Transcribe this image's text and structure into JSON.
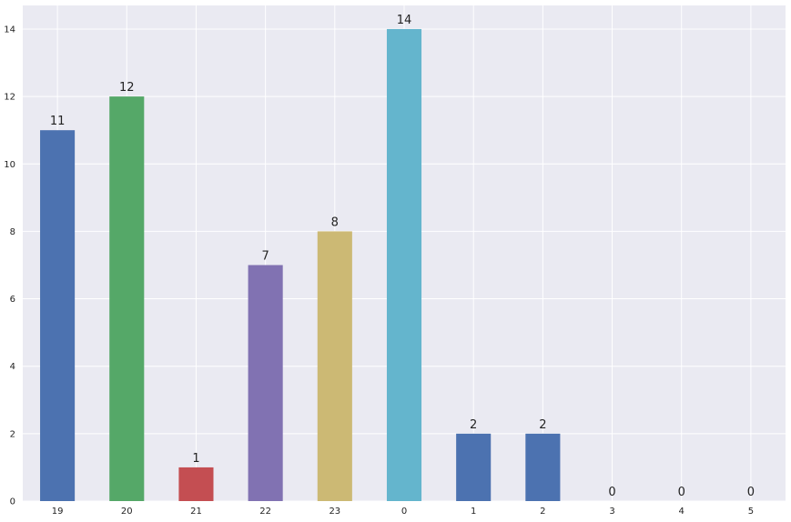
{
  "chart_data": {
    "type": "bar",
    "categories": [
      "19",
      "20",
      "21",
      "22",
      "23",
      "0",
      "1",
      "2",
      "3",
      "4",
      "5"
    ],
    "values": [
      11,
      12,
      1,
      7,
      8,
      14,
      2,
      2,
      0,
      0,
      0
    ],
    "data_labels": [
      "11",
      "12",
      "1",
      "7",
      "8",
      "14",
      "2",
      "2",
      "0",
      "0",
      "0"
    ],
    "colors": [
      "#4c72b0",
      "#55a868",
      "#c44e52",
      "#8172b2",
      "#ccb974",
      "#64b5cd",
      "#4c72b0",
      "#4c72b0",
      "#55a868",
      "#c44e52",
      "#8172b2"
    ],
    "yticks": [
      0,
      2,
      4,
      6,
      8,
      10,
      12,
      14
    ],
    "ytick_labels": [
      "0",
      "2",
      "4",
      "6",
      "8",
      "10",
      "12",
      "14"
    ],
    "ylim": [
      0,
      14.7
    ],
    "grid": true,
    "title": "",
    "xlabel": "",
    "ylabel": ""
  }
}
